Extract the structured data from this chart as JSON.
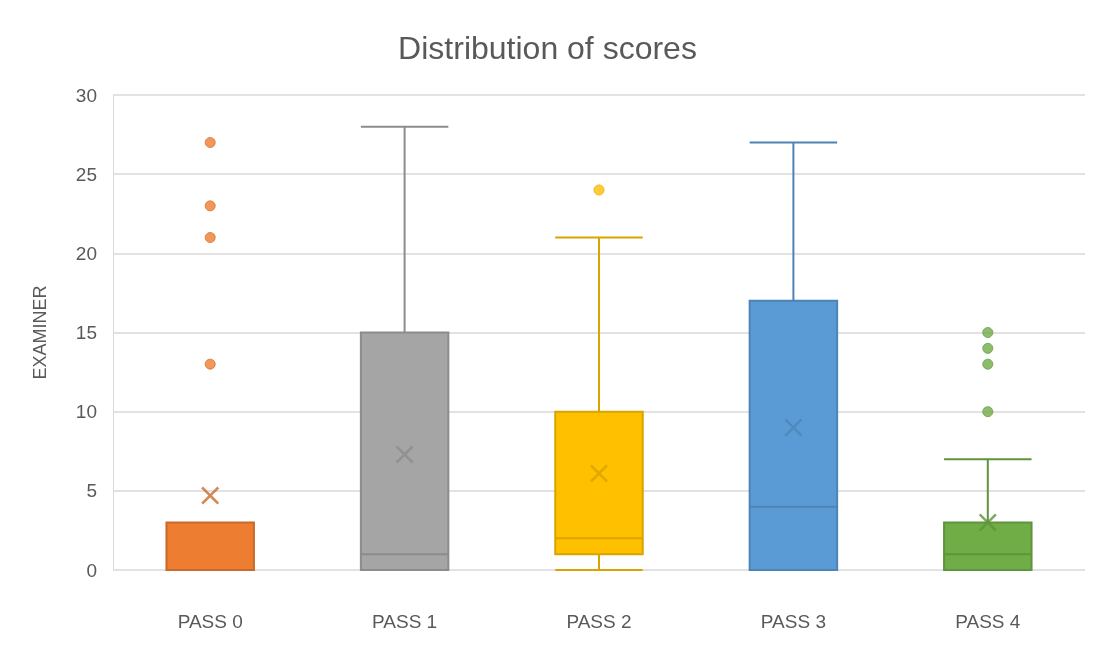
{
  "chart_data": {
    "type": "box",
    "title": "Distribution of scores",
    "ylabel": "EXAMINER",
    "categories": [
      "PASS 0",
      "PASS 1",
      "PASS 2",
      "PASS 3",
      "PASS 4"
    ],
    "colors": [
      "#ed7d31",
      "#a5a5a5",
      "#ffc000",
      "#5b9bd5",
      "#70ad47"
    ],
    "boxes": [
      {
        "low": 0,
        "q1": 0,
        "median": 0,
        "q3": 3,
        "high": 3,
        "mean": 4.7,
        "outliers": [
          13,
          21,
          23,
          27
        ]
      },
      {
        "low": 0,
        "q1": 0,
        "median": 1,
        "q3": 15,
        "high": 28,
        "mean": 7.3
      },
      {
        "low": 0,
        "q1": 1,
        "median": 2,
        "q3": 10,
        "high": 21,
        "mean": 6.1,
        "outliers": [
          24
        ]
      },
      {
        "low": 0,
        "q1": 0,
        "median": 4,
        "q3": 17,
        "high": 27,
        "mean": 9
      },
      {
        "low": 0,
        "q1": 0,
        "median": 1,
        "q3": 3,
        "high": 7,
        "mean": 3,
        "outliers": [
          10,
          13,
          14,
          15
        ]
      }
    ],
    "ylim": [
      0,
      30
    ],
    "yticks": [
      0,
      5,
      10,
      15,
      20,
      25,
      30
    ],
    "grid": "y"
  }
}
